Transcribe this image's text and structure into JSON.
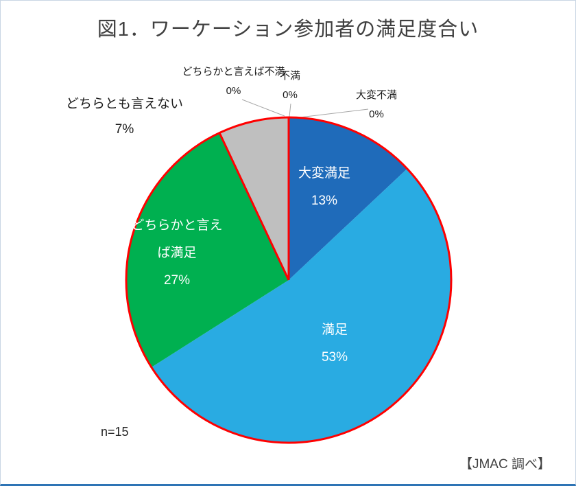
{
  "title": "図1．ワーケーション参加者の満足度合い",
  "source": "【JMAC 調べ】",
  "chart_data": {
    "type": "pie",
    "title": "図1．ワーケーション参加者の満足度合い",
    "n": 15,
    "n_label": "n=15",
    "start_angle_deg": 0,
    "direction": "clockwise",
    "outline_color": "#FF0000",
    "leader_line_color": "#A6A6A6",
    "slices": [
      {
        "id": "very-satisfied",
        "label": "大変満足",
        "value": 13,
        "pct_label": "13%",
        "color": "#1F6BBA",
        "label_pos": "inside"
      },
      {
        "id": "satisfied",
        "label": "満足",
        "value": 53,
        "pct_label": "53%",
        "color": "#29ABE2",
        "label_pos": "inside"
      },
      {
        "id": "somewhat-satisfied",
        "label": "どちらかと言えば満足",
        "lines": [
          "どちらかと言え",
          "ば満足"
        ],
        "value": 27,
        "pct_label": "27%",
        "color": "#00B050",
        "label_pos": "inside"
      },
      {
        "id": "neither",
        "label": "どちらとも言えない",
        "value": 7,
        "pct_label": "7%",
        "color": "#BFBFBF",
        "label_pos": "outside"
      },
      {
        "id": "somewhat-dissatisfied",
        "label": "どちらかと言えば不満",
        "value": 0,
        "pct_label": "0%",
        "color": "#BFBFBF",
        "label_pos": "outside"
      },
      {
        "id": "dissatisfied",
        "label": "不満",
        "value": 0,
        "pct_label": "0%",
        "color": "#BFBFBF",
        "label_pos": "outside"
      },
      {
        "id": "very-dissatisfied",
        "label": "大変不満",
        "value": 0,
        "pct_label": "0%",
        "color": "#BFBFBF",
        "label_pos": "outside"
      }
    ]
  }
}
